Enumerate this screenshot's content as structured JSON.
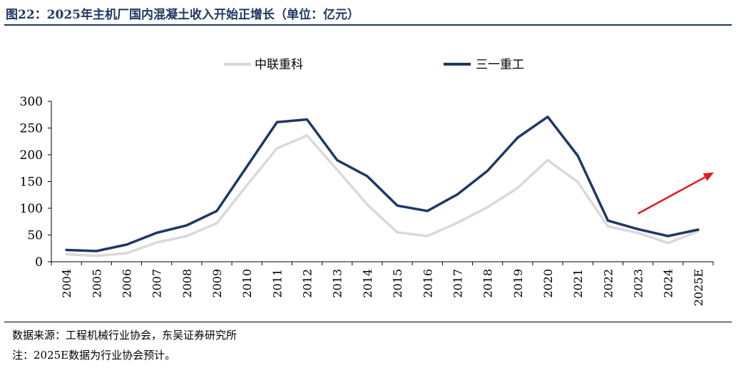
{
  "header": {
    "title": "图22：2025年主机厂国内混凝土收入开始正增长（单位：亿元）"
  },
  "footer": {
    "source": "数据来源：工程机械行业协会，东吴证券研究所",
    "note": "注：2025E数据为行业协会预计。"
  },
  "colors": {
    "zoomlion": "#d9d9d9",
    "sany": "#1f3864",
    "arrow": "#e31a1c",
    "title": "#1f3864"
  },
  "chart_data": {
    "type": "line",
    "title": "",
    "xlabel": "",
    "ylabel": "",
    "categories": [
      "2004",
      "2005",
      "2006",
      "2007",
      "2008",
      "2009",
      "2010",
      "2011",
      "2012",
      "2013",
      "2014",
      "2015",
      "2016",
      "2017",
      "2018",
      "2019",
      "2020",
      "2021",
      "2022",
      "2023",
      "2024",
      "2025E"
    ],
    "ylim": [
      0,
      300
    ],
    "yticks": [
      "0",
      "50",
      "100",
      "150",
      "200",
      "250",
      "300"
    ],
    "legend_position": "top",
    "grid": false,
    "series": [
      {
        "name": "中联重科",
        "color": "#d9d9d9",
        "values": [
          14,
          11,
          16,
          36,
          48,
          72,
          143,
          212,
          236,
          172,
          107,
          55,
          48,
          73,
          102,
          138,
          190,
          149,
          66,
          54,
          35,
          57
        ]
      },
      {
        "name": "三一重工",
        "color": "#1f3864",
        "values": [
          22,
          20,
          32,
          54,
          68,
          95,
          178,
          261,
          266,
          190,
          160,
          105,
          95,
          126,
          170,
          232,
          271,
          198,
          77,
          61,
          48,
          60
        ]
      }
    ],
    "annotation": {
      "type": "arrow",
      "color": "#e31a1c",
      "from": [
        "2023",
        90
      ],
      "to": [
        "2025E",
        167
      ]
    }
  }
}
